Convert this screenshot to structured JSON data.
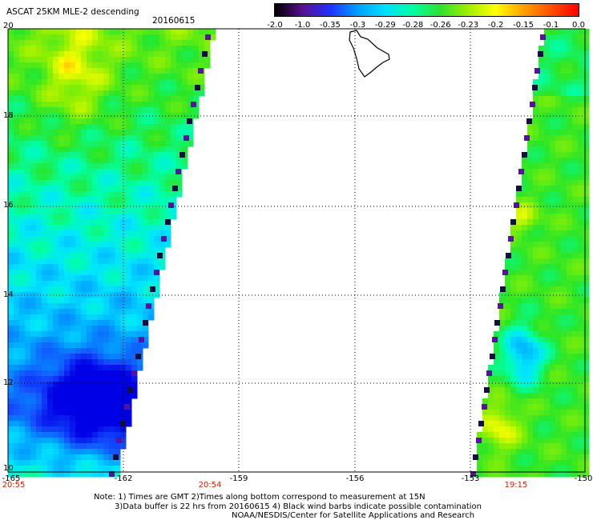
{
  "header": {
    "title": "ASCAT 25KM MLE-2 descending",
    "date": "20160615"
  },
  "colorbar": {
    "ticks": [
      "-2.0",
      "-1.0",
      "-0.35",
      "-0.3",
      "-0.29",
      "-0.28",
      "-0.26",
      "-0.23",
      "-0.2",
      "-0.15",
      "-0.1",
      "0.0"
    ],
    "colors": [
      "#000000",
      "#5a1090",
      "#2030ff",
      "#00a0ff",
      "#00e0ff",
      "#00ffa0",
      "#30e030",
      "#a0f000",
      "#ffff00",
      "#ffa000",
      "#ff5000",
      "#ff0000"
    ]
  },
  "axes": {
    "lat_labels": [
      "20",
      "18",
      "16",
      "14",
      "12",
      "10"
    ],
    "lon_labels": [
      "-165",
      "-162",
      "-159",
      "-156",
      "-153",
      "-150"
    ],
    "time_labels": [
      "20:55",
      "20:54",
      "19:15"
    ]
  },
  "notes": {
    "line1": "Note: 1) Times are GMT 2)Times along bottom correspond to measurement at 15N",
    "line2": "3)Data buffer is 22 hrs from 20160615 4) Black wind barbs indicate possible contamination",
    "line3": "NOAA/NESDIS/Center for Satellite Applications and Research"
  }
}
